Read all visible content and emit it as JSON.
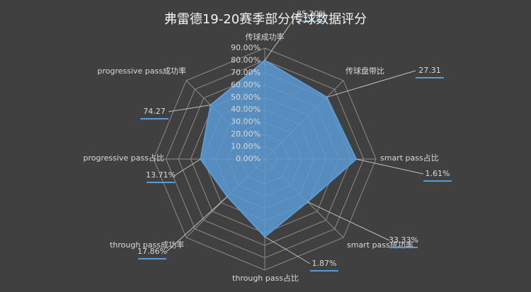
{
  "chart_data": {
    "type": "radar",
    "title": "弗雷德19-20赛季部分传球数据评分",
    "categories": [
      "传球成功率",
      "传球盘带比",
      "smart pass占比",
      "smart pass成功率",
      "through pass占比",
      "through pass成功率",
      "progressive pass占比",
      "progressive pass成功率"
    ],
    "values": [
      80,
      71,
      74,
      49,
      63,
      43,
      52,
      62
    ],
    "color": "#5b9bd5",
    "data_labels": [
      "85.20%",
      "27.31",
      "1.61%",
      "33.33%",
      "1.87%",
      "17.86%",
      "13.71%",
      "74.27"
    ],
    "ylim": [
      0,
      90
    ],
    "yticks": [
      {
        "value": 0,
        "label": "0.00%"
      },
      {
        "value": 10,
        "label": "10.00%"
      },
      {
        "value": 20,
        "label": "20.00%"
      },
      {
        "value": 30,
        "label": "30.00%"
      },
      {
        "value": 40,
        "label": "40.00%"
      },
      {
        "value": 50,
        "label": "50.00%"
      },
      {
        "value": 60,
        "label": "60.00%"
      },
      {
        "value": 70,
        "label": "70.00%"
      },
      {
        "value": 80,
        "label": "80.00%"
      },
      {
        "value": 90,
        "label": "90.00%"
      }
    ],
    "grid": true
  }
}
